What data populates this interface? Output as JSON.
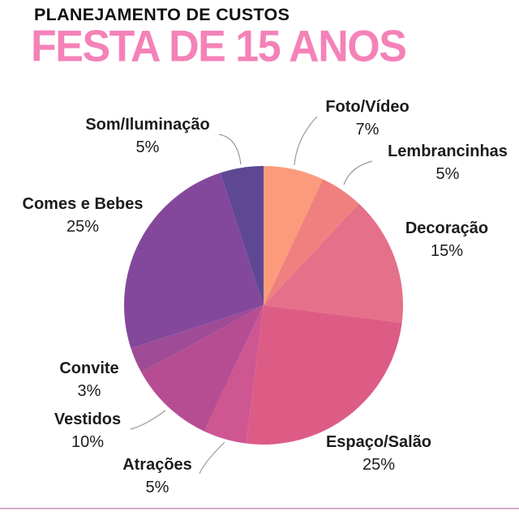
{
  "header": {
    "kicker": "PLANEJAMENTO DE CUSTOS",
    "kicker_color": "#111111",
    "title": "FESTA DE 15 ANOS",
    "title_color": "#F482B8"
  },
  "chart_data": {
    "type": "pie",
    "title": "PLANEJAMENTO DE CUSTOS",
    "subtitle": "FESTA DE 15 ANOS",
    "legend_position": "callout-labels-around-pie",
    "start_angle": "12-o-clock",
    "direction": "clockwise",
    "total": 100,
    "slices": [
      {
        "label": "Foto/Vídeo",
        "value": 7,
        "pct": "7%",
        "color": "#FB9B7B"
      },
      {
        "label": "Lembrancinhas",
        "value": 5,
        "pct": "5%",
        "color": "#F08080"
      },
      {
        "label": "Decoração",
        "value": 15,
        "pct": "15%",
        "color": "#E57089"
      },
      {
        "label": "Espaço/Salão",
        "value": 25,
        "pct": "25%",
        "color": "#DD5C86"
      },
      {
        "label": "Atrações",
        "value": 5,
        "pct": "5%",
        "color": "#CE5691"
      },
      {
        "label": "Vestidos",
        "value": 10,
        "pct": "10%",
        "color": "#B64D92"
      },
      {
        "label": "Convite",
        "value": 3,
        "pct": "3%",
        "color": "#9F4B96"
      },
      {
        "label": "Comes e Bebes",
        "value": 25,
        "pct": "25%",
        "color": "#83489B"
      },
      {
        "label": "Som/Iluminação",
        "value": 5,
        "pct": "5%",
        "color": "#5E4894"
      }
    ],
    "leader_line_color": "#999999"
  },
  "footer": {
    "divider_color": "#D5AECB"
  }
}
